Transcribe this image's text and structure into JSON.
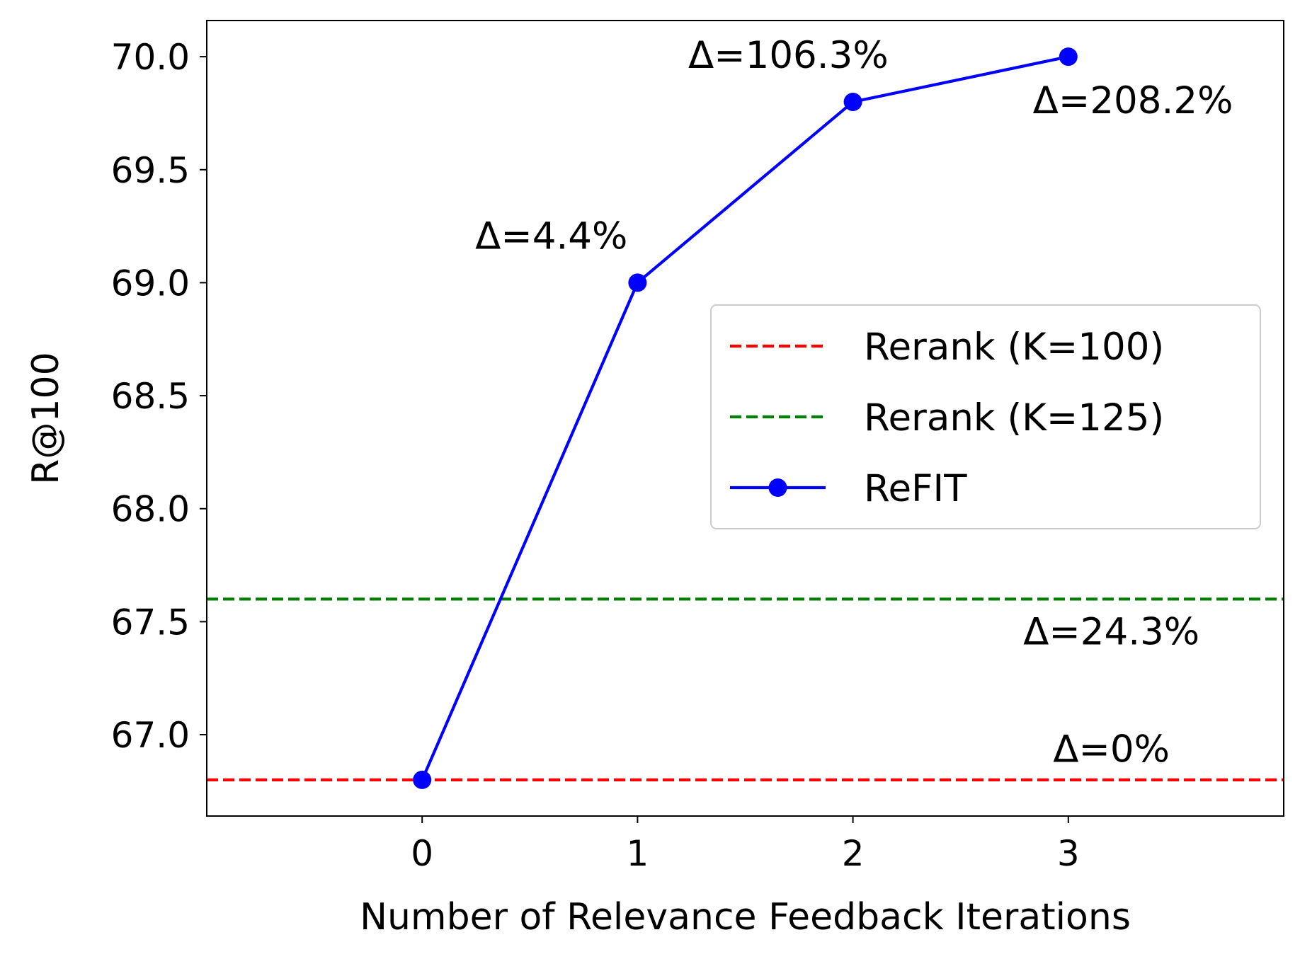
{
  "chart_data": {
    "type": "line",
    "title": "",
    "xlabel": "Number of Relevance Feedback Iterations",
    "ylabel": "R@100",
    "xlim": [
      -1,
      4
    ],
    "ylim": [
      66.64,
      70.16
    ],
    "x_ticks": [
      0,
      1,
      2,
      3
    ],
    "x_tick_labels": [
      "0",
      "1",
      "2",
      "3"
    ],
    "y_ticks": [
      67.0,
      67.5,
      68.0,
      68.5,
      69.0,
      69.5,
      70.0
    ],
    "y_tick_labels": [
      "67.0",
      "67.5",
      "68.0",
      "68.5",
      "69.0",
      "69.5",
      "70.0"
    ],
    "grid": false,
    "legend_position": "center-right",
    "series": [
      {
        "name": "ReFIT",
        "style": "solid-with-markers",
        "color": "#0000ff",
        "x": [
          0,
          1,
          2,
          3
        ],
        "y": [
          66.8,
          69.0,
          69.8,
          70.0
        ]
      }
    ],
    "reference_lines": [
      {
        "name": "Rerank (K=100)",
        "y": 66.8,
        "style": "dashed",
        "color": "#ff0000"
      },
      {
        "name": "Rerank (K=125)",
        "y": 67.6,
        "style": "dashed",
        "color": "#008000"
      }
    ],
    "annotations": [
      {
        "text": "Δ=4.4%",
        "x": 0.6,
        "y": 69.15
      },
      {
        "text": "Δ=106.3%",
        "x": 1.7,
        "y": 69.95
      },
      {
        "text": "Δ=208.2%",
        "x": 3.3,
        "y": 69.75
      },
      {
        "text": "Δ=24.3%",
        "x": 3.2,
        "y": 67.4
      },
      {
        "text": "Δ=0%",
        "x": 3.2,
        "y": 66.88
      }
    ]
  }
}
